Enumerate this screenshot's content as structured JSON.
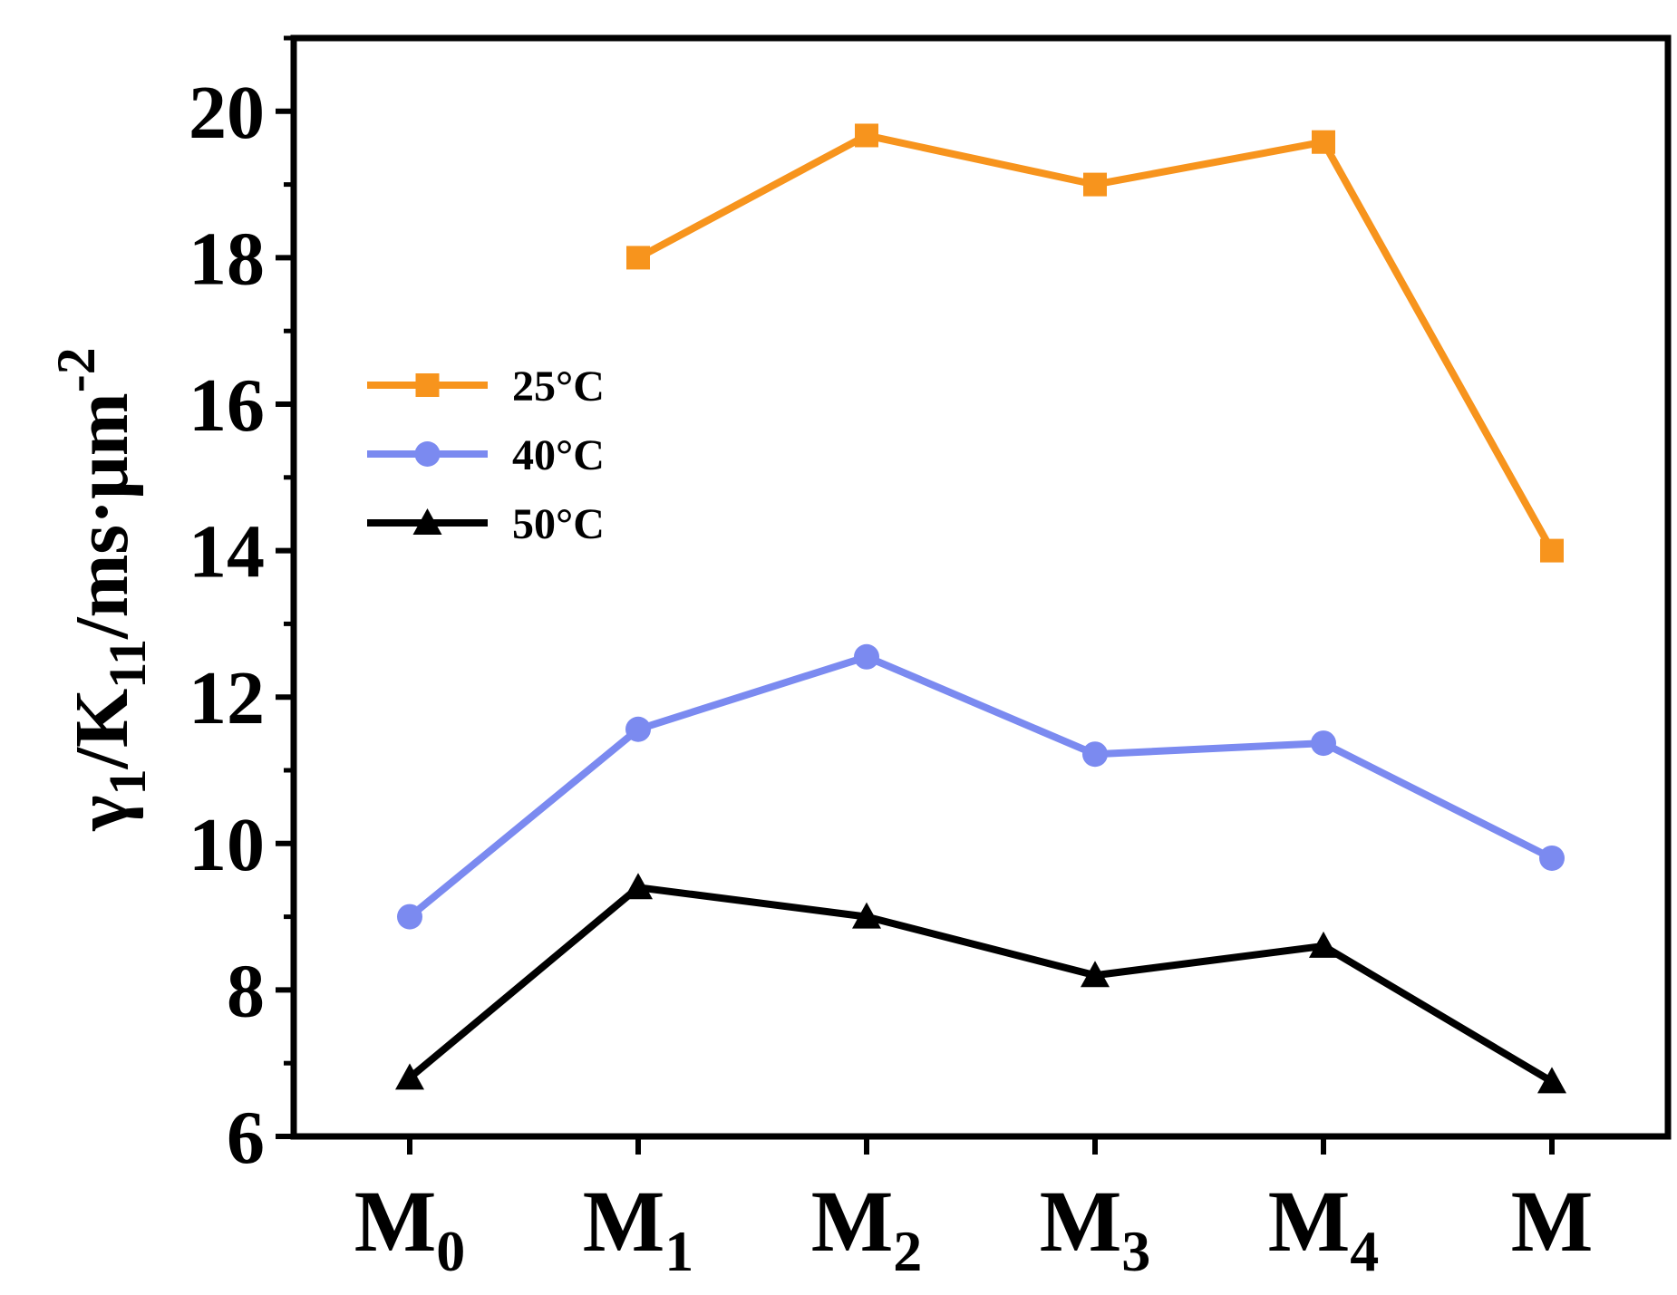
{
  "chart_data": {
    "type": "line",
    "title": "",
    "xlabel": "",
    "ylabel": {
      "base": "γ",
      "sub1": "1",
      "mid": "/K",
      "sub2": "11",
      "unit": "/ms·μm",
      "sup": "-2"
    },
    "categories": [
      {
        "base": "M",
        "sub": "0"
      },
      {
        "base": "M",
        "sub": "1"
      },
      {
        "base": "M",
        "sub": "2"
      },
      {
        "base": "M",
        "sub": "3"
      },
      {
        "base": "M",
        "sub": "4"
      },
      {
        "base": "M",
        "sub": ""
      }
    ],
    "ylim": [
      6,
      21
    ],
    "yticks": [
      6,
      8,
      10,
      12,
      14,
      16,
      18,
      20
    ],
    "grid": false,
    "legend_position": "upper-left",
    "series": [
      {
        "name": "25°C",
        "color": "#F7941D",
        "marker": "square",
        "values": [
          null,
          18.0,
          19.67,
          19.0,
          19.58,
          14.0
        ]
      },
      {
        "name": "40°C",
        "color": "#7B8AF0",
        "marker": "circle",
        "values": [
          9.0,
          11.56,
          12.55,
          11.22,
          11.37,
          9.8
        ]
      },
      {
        "name": "50°C",
        "color": "#000000",
        "marker": "triangle",
        "values": [
          6.8,
          9.4,
          9.0,
          8.2,
          8.6,
          6.75
        ]
      }
    ]
  }
}
